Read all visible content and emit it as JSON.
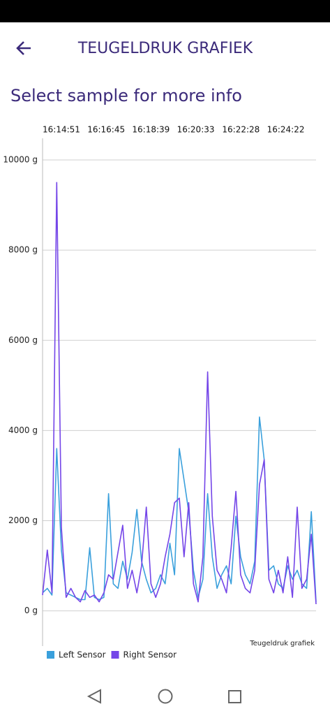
{
  "app": {
    "title": "TEUGELDRUK GRAFIEK",
    "subtitle": "Select sample for more info"
  },
  "chart_data": {
    "type": "line",
    "annotation": "Teugeldruk grafiek",
    "grid": true,
    "legend": "bottom-left",
    "x": [
      "16:14:51",
      "16:15:03",
      "16:15:15",
      "16:15:27",
      "16:15:39",
      "16:15:51",
      "16:16:03",
      "16:16:15",
      "16:16:27",
      "16:16:39",
      "16:16:51",
      "16:17:03",
      "16:17:15",
      "16:17:27",
      "16:17:39",
      "16:17:51",
      "16:18:03",
      "16:18:15",
      "16:18:27",
      "16:18:39",
      "16:18:51",
      "16:19:03",
      "16:19:15",
      "16:19:27",
      "16:19:39",
      "16:19:51",
      "16:20:03",
      "16:20:15",
      "16:20:27",
      "16:20:39",
      "16:20:51",
      "16:21:03",
      "16:21:15",
      "16:21:27",
      "16:21:39",
      "16:21:51",
      "16:22:03",
      "16:22:15",
      "16:22:27",
      "16:22:39",
      "16:22:51",
      "16:23:03",
      "16:23:15",
      "16:23:27",
      "16:23:39",
      "16:23:51",
      "16:24:03",
      "16:24:15",
      "16:24:27",
      "16:24:39",
      "16:24:51",
      "16:25:03",
      "16:25:15",
      "16:25:27",
      "16:25:39",
      "16:25:51",
      "16:26:03",
      "16:26:15",
      "16:26:27"
    ],
    "series": [
      {
        "name": "Left Sensor",
        "color": "#3aa0dc",
        "values": [
          400,
          500,
          350,
          3600,
          1350,
          400,
          350,
          300,
          250,
          250,
          1400,
          300,
          250,
          300,
          2600,
          600,
          500,
          1100,
          700,
          1300,
          2250,
          1100,
          700,
          400,
          500,
          800,
          600,
          1500,
          800,
          3600,
          2900,
          2200,
          900,
          300,
          700,
          2600,
          1200,
          500,
          800,
          1000,
          600,
          2100,
          1200,
          800,
          600,
          1100,
          4300,
          3350,
          900,
          1000,
          600,
          500,
          1000,
          700,
          900,
          600,
          500,
          2200,
          200
        ]
      },
      {
        "name": "Right Sensor",
        "color": "#7445e8",
        "values": [
          350,
          1350,
          400,
          9500,
          1850,
          300,
          500,
          300,
          200,
          450,
          300,
          350,
          200,
          400,
          800,
          700,
          1300,
          1900,
          500,
          900,
          400,
          1000,
          2300,
          600,
          300,
          600,
          1200,
          1700,
          2400,
          2500,
          1200,
          2400,
          600,
          200,
          1200,
          5300,
          2100,
          900,
          700,
          400,
          1400,
          2650,
          800,
          500,
          400,
          900,
          2800,
          3350,
          700,
          400,
          900,
          400,
          1200,
          300,
          2300,
          500,
          700,
          1700,
          150
        ]
      }
    ],
    "xlim": [
      "16:14:51",
      "16:26:27"
    ],
    "xticks": [
      "16:14:51",
      "16:16:45",
      "16:18:39",
      "16:20:33",
      "16:22:28",
      "16:24:22"
    ],
    "ylim": [
      -780,
      10480
    ],
    "yticks": [
      {
        "value": 0,
        "label": "0 g"
      },
      {
        "value": 2000,
        "label": "2000 g"
      },
      {
        "value": 4000,
        "label": "4000 g"
      },
      {
        "value": 6000,
        "label": "6000 g"
      },
      {
        "value": 8000,
        "label": "8000 g"
      },
      {
        "value": 10000,
        "label": "10000 g"
      }
    ]
  }
}
